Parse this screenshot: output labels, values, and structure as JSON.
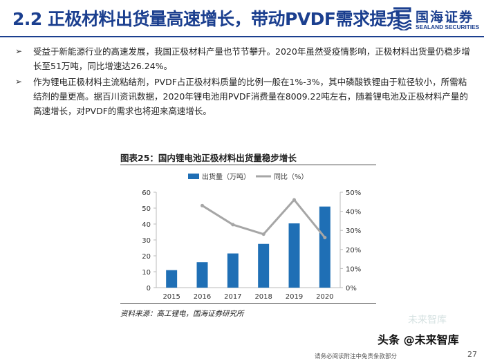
{
  "header": {
    "title": "2.2 正极材料出货量高速增长，带动PVDF需求提升",
    "logo_cn": "国海证券",
    "logo_en": "SEALAND SECURITIES"
  },
  "bullets": [
    "受益于新能源行业的高速发展，我国正极材料产量也节节攀升。2020年虽然受疫情影响，正极材料出货量仍稳步增长至51万吨，同比增速达26.24%。",
    "作为锂电正极材料主流粘结剂，PVDF占正极材料质量的比例一般在1%-3%，其中磷酸铁锂由于粒径较小，所需粘结剂的量更高。据百川资讯数据，2020年锂电池用PVDF消费量在8009.22吨左右，随着锂电池及正极材料产量的高速增长，对PVDF的需求也将迎来高速增长。"
  ],
  "bullet_marker": "➢",
  "chart_title": "图表25：国内锂电池正极材料出货量稳步增长",
  "source": "资料来源：高工锂电，国海证券研究所",
  "chart_data": {
    "type": "bar",
    "categories": [
      "2015",
      "2016",
      "2017",
      "2018",
      "2019",
      "2020"
    ],
    "series": [
      {
        "name": "出货量（万吨）",
        "type": "bar",
        "axis": "left",
        "values": [
          11,
          16,
          21.5,
          27.5,
          40.4,
          51
        ]
      },
      {
        "name": "同比（%）",
        "type": "line",
        "axis": "right",
        "values": [
          null,
          43,
          33,
          28,
          46,
          26.24
        ]
      }
    ],
    "left_axis": {
      "ylim": [
        0,
        60
      ],
      "ticks": [
        "0",
        "10",
        "20",
        "30",
        "40",
        "50",
        "60"
      ]
    },
    "right_axis": {
      "ylim": [
        0,
        50
      ],
      "ticks": [
        "0%",
        "10%",
        "20%",
        "30%",
        "40%",
        "50%"
      ]
    },
    "legend_position": "top",
    "grid": false,
    "colors": {
      "bar": "#1f6fb5",
      "line": "#a6a6a6"
    }
  },
  "watermark": "未来智库",
  "brand_text": "头条 @未来智库",
  "footer_text": "请务必阅读附注中免责条款部分",
  "page_number": "27"
}
